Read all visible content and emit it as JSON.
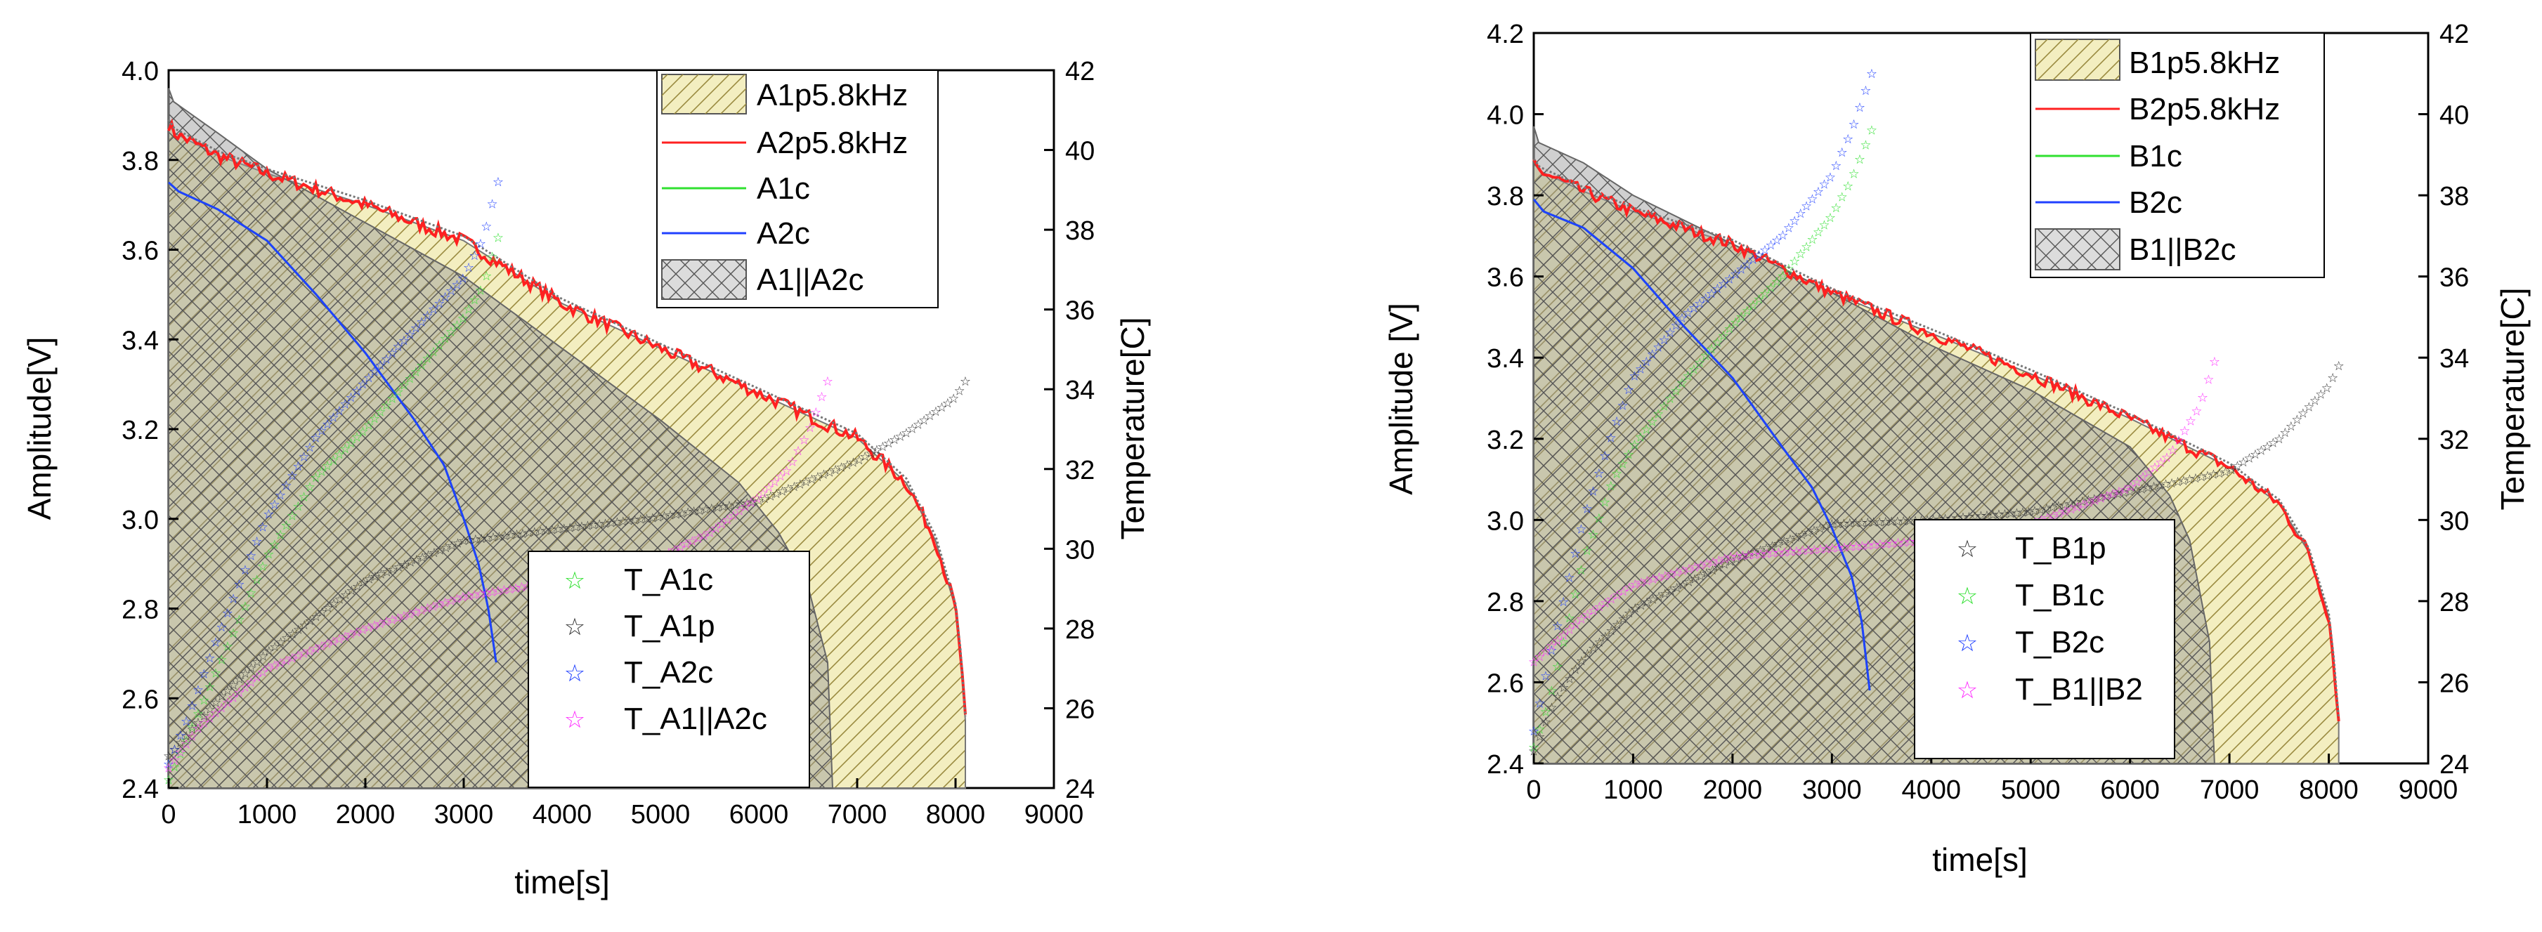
{
  "chart_data": [
    {
      "type": "line",
      "panel": "left",
      "xlabel": "time[s]",
      "ylabel": "Amplitude[V]",
      "y2label": "Temperature[C]",
      "xlim": [
        0,
        9000
      ],
      "ylim": [
        2.4,
        4.0
      ],
      "y2lim": [
        24,
        42
      ],
      "xticks": [
        "0",
        "1000",
        "2000",
        "3000",
        "4000",
        "5000",
        "6000",
        "7000",
        "8000",
        "9000"
      ],
      "yticks": [
        "2.4",
        "2.6",
        "2.8",
        "3.0",
        "3.2",
        "3.4",
        "3.6",
        "3.8",
        "4.0"
      ],
      "y2ticks": [
        "24",
        "26",
        "28",
        "30",
        "32",
        "34",
        "36",
        "38",
        "40",
        "42"
      ],
      "legend_top": [
        "A1p5.8kHz",
        "A2p5.8kHz",
        "A1c",
        "A2c",
        "A1||A2c"
      ],
      "legend_bottom": [
        "T_A1c",
        "T_A1p",
        "T_A2c",
        "T_A1||A2c"
      ],
      "voltage_series": [
        {
          "name": "A1p5.8kHz",
          "style": "yellow-hatched-area",
          "color": "#b8a23a",
          "x": [
            0,
            60,
            500,
            1000,
            2000,
            3000,
            4000,
            5000,
            6000,
            7000,
            7500,
            7800,
            8000,
            8050,
            8100
          ],
          "y": [
            3.88,
            3.86,
            3.81,
            3.77,
            3.7,
            3.62,
            3.48,
            3.38,
            3.28,
            3.18,
            3.08,
            2.95,
            2.8,
            2.7,
            2.55
          ]
        },
        {
          "name": "A2p5.8kHz",
          "style": "line",
          "color": "#ff2020",
          "x": [
            0,
            60,
            500,
            1000,
            2000,
            3000,
            4000,
            5000,
            6000,
            7000,
            7500,
            7800,
            8000,
            8050,
            8100
          ],
          "y": [
            3.88,
            3.86,
            3.81,
            3.77,
            3.7,
            3.62,
            3.48,
            3.38,
            3.28,
            3.18,
            3.08,
            2.95,
            2.8,
            2.7,
            2.55
          ]
        },
        {
          "name": "A1c",
          "style": "line",
          "color": "#30e030",
          "x": [
            0,
            100,
            500,
            1000,
            1500,
            2000,
            2500,
            2800,
            3000,
            3150,
            3250,
            3330
          ],
          "y": [
            3.75,
            3.73,
            3.69,
            3.62,
            3.5,
            3.37,
            3.22,
            3.12,
            3.0,
            2.9,
            2.8,
            2.68
          ]
        },
        {
          "name": "A2c",
          "style": "line",
          "color": "#2040ff",
          "x": [
            0,
            100,
            500,
            1000,
            1500,
            2000,
            2500,
            2800,
            3000,
            3150,
            3250,
            3330
          ],
          "y": [
            3.75,
            3.73,
            3.69,
            3.62,
            3.5,
            3.37,
            3.22,
            3.12,
            3.0,
            2.9,
            2.8,
            2.68
          ]
        },
        {
          "name": "A1||A2c",
          "style": "grey-crosshatched-area",
          "color": "#888888",
          "x": [
            0,
            50,
            500,
            1000,
            2000,
            3000,
            4000,
            5000,
            5800,
            6200,
            6500,
            6700,
            6750
          ],
          "y": [
            3.96,
            3.93,
            3.86,
            3.78,
            3.66,
            3.54,
            3.38,
            3.22,
            3.08,
            2.97,
            2.85,
            2.68,
            2.4
          ]
        }
      ],
      "temperature_series": [
        {
          "name": "T_A1c",
          "marker": "star",
          "color": "#30e030",
          "x": [
            0,
            200,
            500,
            1000,
            1500,
            2000,
            2500,
            3000,
            3200,
            3350
          ],
          "y": [
            24.2,
            25.3,
            27.0,
            29.8,
            31.8,
            33.0,
            34.4,
            35.8,
            36.6,
            37.8
          ]
        },
        {
          "name": "T_A1p",
          "marker": "star",
          "color": "#333333",
          "x": [
            0,
            500,
            1000,
            2000,
            3000,
            4000,
            5000,
            6000,
            7000,
            7500,
            8000,
            8100
          ],
          "y": [
            24.8,
            26.2,
            27.4,
            29.2,
            30.2,
            30.5,
            30.8,
            31.2,
            32.2,
            32.9,
            33.8,
            34.2
          ]
        },
        {
          "name": "T_A2c",
          "marker": "star",
          "color": "#2040ff",
          "x": [
            0,
            200,
            500,
            1000,
            1500,
            2000,
            2500,
            3000,
            3200,
            3350
          ],
          "y": [
            24.6,
            25.8,
            27.8,
            30.8,
            32.8,
            34.2,
            35.5,
            36.8,
            37.8,
            39.2
          ]
        },
        {
          "name": "T_A1||A2c",
          "marker": "star",
          "color": "#ff30ff",
          "x": [
            0,
            300,
            1000,
            2000,
            3000,
            4000,
            5000,
            5500,
            6000,
            6300,
            6500,
            6700
          ],
          "y": [
            24.5,
            25.5,
            27.0,
            28.0,
            28.8,
            29.2,
            29.8,
            30.4,
            31.3,
            32.0,
            32.9,
            34.2
          ]
        }
      ]
    },
    {
      "type": "line",
      "panel": "right",
      "xlabel": "time[s]",
      "ylabel": "Amplitude [V]",
      "y2label": "Temperature[C]",
      "xlim": [
        0,
        9000
      ],
      "ylim": [
        2.4,
        4.2
      ],
      "y2lim": [
        24,
        42
      ],
      "xticks": [
        "0",
        "1000",
        "2000",
        "3000",
        "4000",
        "5000",
        "6000",
        "7000",
        "8000",
        "9000"
      ],
      "yticks": [
        "2.4",
        "2.6",
        "2.8",
        "3.0",
        "3.2",
        "3.4",
        "3.6",
        "3.8",
        "4.0",
        "4.2"
      ],
      "y2ticks": [
        "24",
        "26",
        "28",
        "30",
        "32",
        "34",
        "36",
        "38",
        "40",
        "42"
      ],
      "legend_top": [
        "B1p5.8kHz",
        "B2p5.8kHz",
        "B1c",
        "B2c",
        "B1||B2c"
      ],
      "legend_bottom": [
        "T_B1p",
        "T_B1c",
        "T_B2c",
        "T_B1||B2"
      ],
      "voltage_series": [
        {
          "name": "B1p5.8kHz",
          "style": "yellow-hatched-area",
          "color": "#b8a23a",
          "x": [
            0,
            60,
            500,
            1000,
            2000,
            3000,
            4000,
            5000,
            6000,
            7000,
            7500,
            7800,
            8000,
            8050,
            8100
          ],
          "y": [
            3.88,
            3.86,
            3.81,
            3.76,
            3.68,
            3.56,
            3.46,
            3.36,
            3.25,
            3.13,
            3.04,
            2.92,
            2.76,
            2.65,
            2.5
          ]
        },
        {
          "name": "B2p5.8kHz",
          "style": "line",
          "color": "#ff2020",
          "x": [
            0,
            60,
            500,
            1000,
            2000,
            3000,
            4000,
            5000,
            6000,
            7000,
            7500,
            7800,
            8000,
            8050,
            8100
          ],
          "y": [
            3.88,
            3.86,
            3.81,
            3.76,
            3.68,
            3.56,
            3.46,
            3.36,
            3.25,
            3.13,
            3.04,
            2.92,
            2.76,
            2.65,
            2.5
          ]
        },
        {
          "name": "B1c",
          "style": "line",
          "color": "#30e030",
          "x": [
            0,
            100,
            500,
            1000,
            1500,
            2000,
            2500,
            2800,
            3000,
            3200,
            3300,
            3380
          ],
          "y": [
            3.79,
            3.76,
            3.72,
            3.62,
            3.48,
            3.35,
            3.18,
            3.08,
            2.98,
            2.86,
            2.75,
            2.58
          ]
        },
        {
          "name": "B2c",
          "style": "line",
          "color": "#2040ff",
          "x": [
            0,
            100,
            500,
            1000,
            1500,
            2000,
            2500,
            2800,
            3000,
            3200,
            3300,
            3380
          ],
          "y": [
            3.79,
            3.76,
            3.72,
            3.62,
            3.48,
            3.35,
            3.18,
            3.08,
            2.98,
            2.86,
            2.75,
            2.58
          ]
        },
        {
          "name": "B1||B2c",
          "style": "grey-crosshatched-area",
          "color": "#888888",
          "x": [
            0,
            50,
            500,
            1000,
            2000,
            3000,
            4000,
            5000,
            6000,
            6400,
            6600,
            6800,
            6850
          ],
          "y": [
            3.97,
            3.93,
            3.88,
            3.8,
            3.68,
            3.56,
            3.43,
            3.32,
            3.18,
            3.06,
            2.95,
            2.7,
            2.4
          ]
        }
      ],
      "temperature_series": [
        {
          "name": "T_B1p",
          "marker": "star",
          "color": "#333333",
          "x": [
            0,
            200,
            500,
            1000,
            2000,
            3000,
            4000,
            5000,
            6000,
            7000,
            7500,
            8000,
            8100
          ],
          "y": [
            24.3,
            25.5,
            26.6,
            27.8,
            29.0,
            29.9,
            30.0,
            30.2,
            30.7,
            31.2,
            32.0,
            33.3,
            33.8
          ]
        },
        {
          "name": "T_B1c",
          "marker": "star",
          "color": "#30e030",
          "x": [
            0,
            150,
            500,
            800,
            1000,
            1500,
            2000,
            2500,
            3000,
            3200,
            3400
          ],
          "y": [
            24.4,
            25.5,
            29.0,
            31.0,
            31.8,
            33.4,
            34.8,
            36.0,
            37.5,
            38.4,
            39.6
          ]
        },
        {
          "name": "T_B2c",
          "marker": "star",
          "color": "#2040ff",
          "x": [
            0,
            150,
            500,
            800,
            1000,
            1500,
            2000,
            2500,
            3000,
            3200,
            3400
          ],
          "y": [
            24.8,
            26.5,
            30.0,
            32.2,
            33.5,
            35.0,
            36.0,
            37.0,
            38.5,
            39.6,
            41.0
          ]
        },
        {
          "name": "T_B1||B2",
          "marker": "star",
          "color": "#ff30ff",
          "x": [
            0,
            500,
            1000,
            2000,
            3000,
            4000,
            5000,
            6000,
            6400,
            6700,
            6850
          ],
          "y": [
            26.5,
            27.6,
            28.4,
            29.1,
            29.3,
            29.5,
            29.9,
            30.8,
            31.6,
            32.8,
            33.9
          ]
        }
      ]
    }
  ]
}
